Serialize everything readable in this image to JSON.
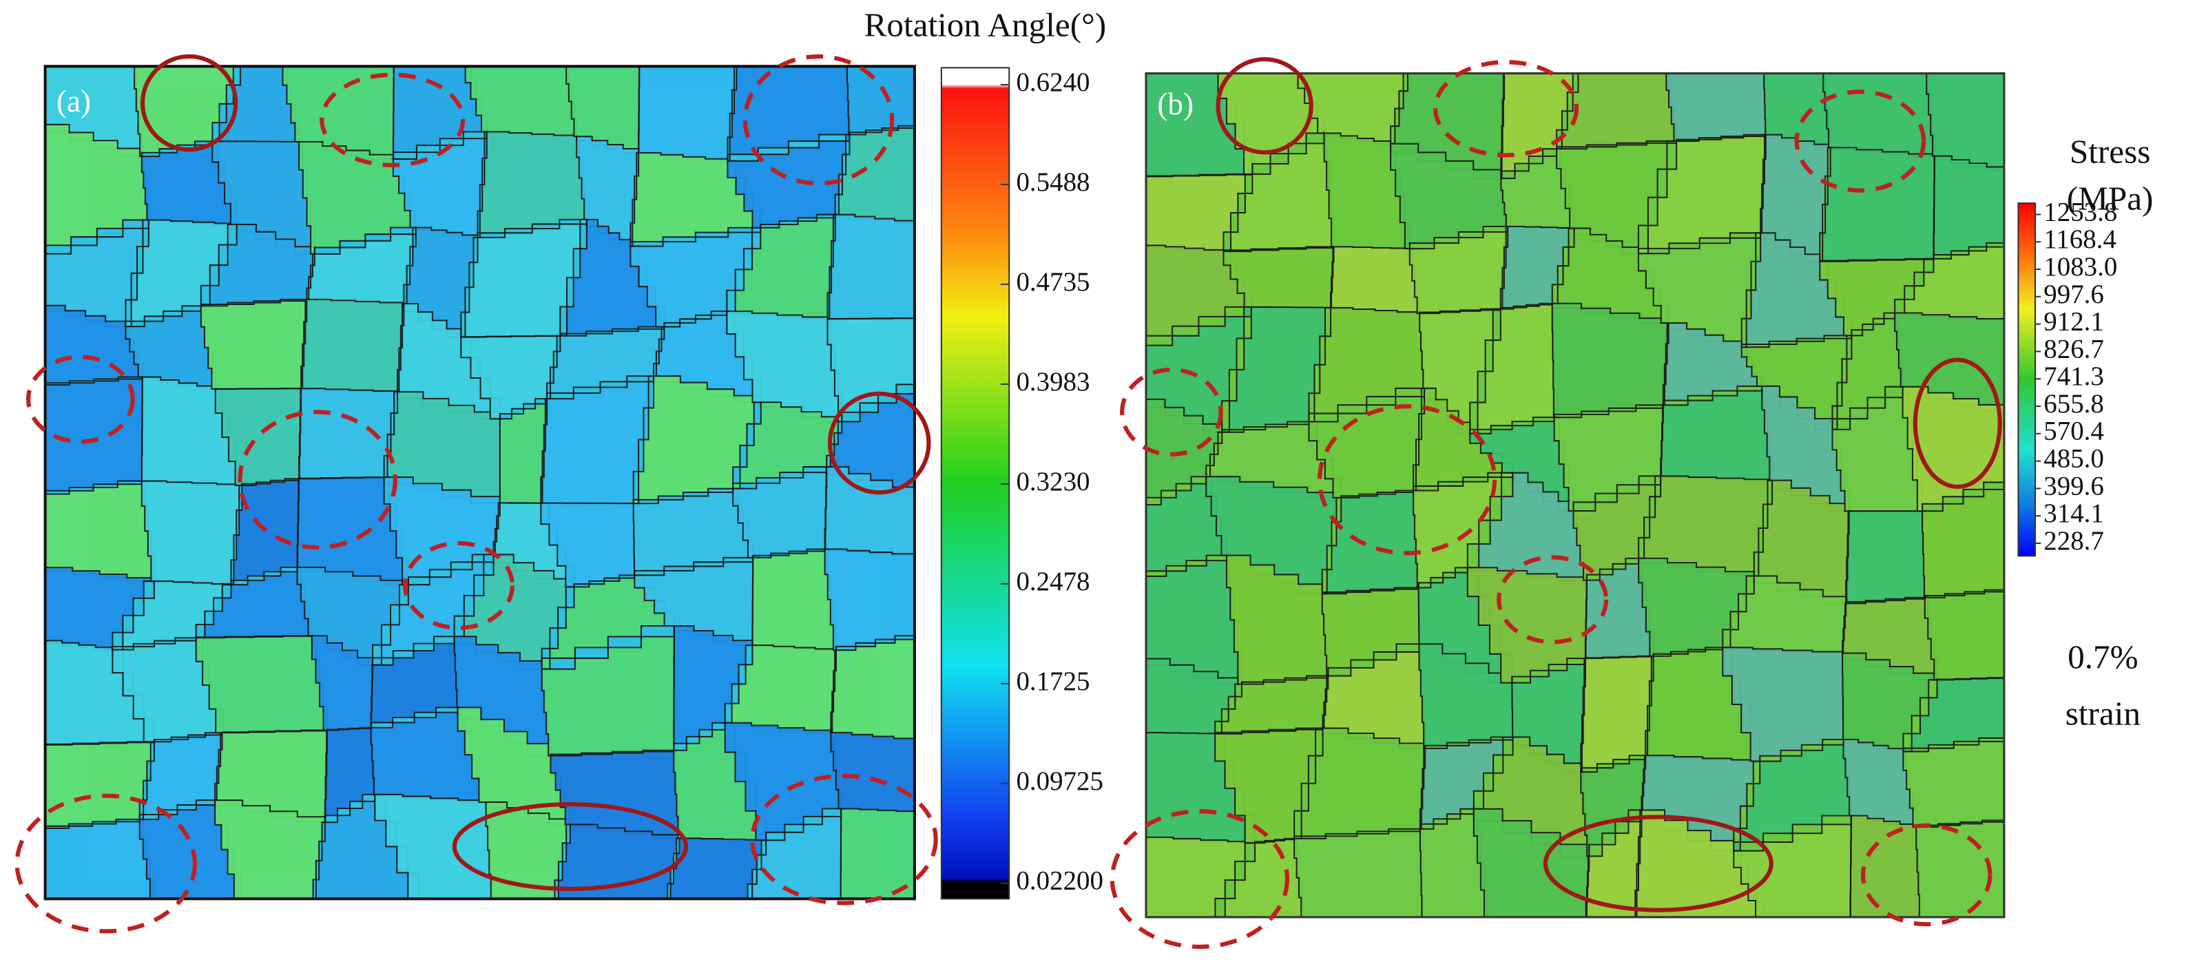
{
  "panel_a": {
    "label": "(a)",
    "colorbar": {
      "title": "Rotation Angle(°)",
      "labels": [
        "0.6240",
        "0.5488",
        "0.4735",
        "0.3983",
        "0.3230",
        "0.2478",
        "0.1725",
        "0.09725",
        "0.02200"
      ]
    }
  },
  "panel_b": {
    "label": "(b)",
    "colorbar": {
      "title": [
        "Stress",
        "(MPa)"
      ],
      "labels": [
        "1253.8",
        "1168.4",
        "1083.0",
        "997.6",
        "912.1",
        "826.7",
        "741.3",
        "655.8",
        "570.4",
        "485.0",
        "399.6",
        "314.1",
        "228.7"
      ]
    },
    "note": [
      "0.7%",
      "strain"
    ]
  }
}
